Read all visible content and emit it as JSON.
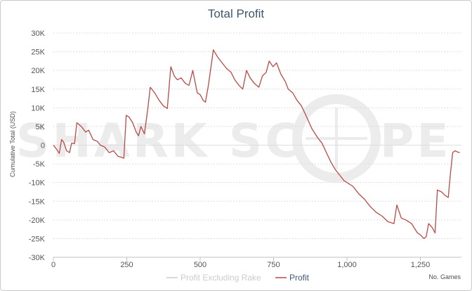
{
  "chart_data": {
    "type": "line",
    "title": "Total Profit",
    "xlabel": "No. Games",
    "ylabel": "Cumulative Total (USD)",
    "xlim": [
      0,
      1390
    ],
    "ylim": [
      -30000,
      30000
    ],
    "x_ticks": [
      0,
      250,
      500,
      750,
      1000,
      1250
    ],
    "x_tick_labels": [
      "0",
      "250",
      "500",
      "750",
      "1,000",
      "1,250"
    ],
    "y_ticks": [
      30000,
      25000,
      20000,
      15000,
      10000,
      5000,
      0,
      -5000,
      -10000,
      -15000,
      -20000,
      -25000,
      -30000
    ],
    "y_tick_labels": [
      "30K",
      "25K",
      "20K",
      "15K",
      "10K",
      "5K",
      "0",
      "-5K",
      "-10K",
      "-15K",
      "-20K",
      "-25K",
      "-30K"
    ],
    "grid": true,
    "legend_position": "bottom-center",
    "watermark": {
      "left": "SHARK SC",
      "right": "PE"
    },
    "series": [
      {
        "name": "Profit Excluding Rake",
        "color": "#cccccc",
        "visible": false,
        "points": []
      },
      {
        "name": "Profit",
        "color": "#b94a48",
        "visible": true,
        "points": [
          [
            0,
            0
          ],
          [
            10,
            -1000
          ],
          [
            20,
            -2200
          ],
          [
            28,
            1500
          ],
          [
            35,
            800
          ],
          [
            45,
            -1500
          ],
          [
            55,
            -2000
          ],
          [
            62,
            500
          ],
          [
            72,
            400
          ],
          [
            80,
            6000
          ],
          [
            95,
            5000
          ],
          [
            110,
            3500
          ],
          [
            120,
            4000
          ],
          [
            135,
            1500
          ],
          [
            150,
            1000
          ],
          [
            160,
            0
          ],
          [
            175,
            -500
          ],
          [
            190,
            -2000
          ],
          [
            205,
            -1500
          ],
          [
            220,
            -3000
          ],
          [
            230,
            -3200
          ],
          [
            240,
            -3500
          ],
          [
            248,
            8000
          ],
          [
            258,
            7500
          ],
          [
            270,
            6000
          ],
          [
            282,
            3500
          ],
          [
            290,
            2500
          ],
          [
            298,
            5000
          ],
          [
            310,
            3000
          ],
          [
            322,
            10000
          ],
          [
            330,
            15500
          ],
          [
            345,
            14000
          ],
          [
            360,
            12000
          ],
          [
            375,
            10500
          ],
          [
            388,
            9800
          ],
          [
            400,
            21000
          ],
          [
            412,
            18500
          ],
          [
            422,
            17500
          ],
          [
            435,
            18000
          ],
          [
            450,
            16500
          ],
          [
            462,
            16000
          ],
          [
            475,
            20000
          ],
          [
            490,
            14000
          ],
          [
            500,
            13500
          ],
          [
            510,
            12000
          ],
          [
            518,
            11500
          ],
          [
            528,
            16000
          ],
          [
            545,
            25500
          ],
          [
            560,
            23500
          ],
          [
            575,
            22000
          ],
          [
            590,
            20500
          ],
          [
            605,
            19500
          ],
          [
            618,
            17500
          ],
          [
            632,
            16000
          ],
          [
            645,
            15000
          ],
          [
            658,
            20000
          ],
          [
            670,
            18000
          ],
          [
            685,
            16500
          ],
          [
            700,
            15500
          ],
          [
            712,
            18500
          ],
          [
            725,
            19500
          ],
          [
            735,
            22500
          ],
          [
            748,
            21000
          ],
          [
            760,
            22000
          ],
          [
            775,
            19000
          ],
          [
            790,
            17000
          ],
          [
            800,
            15000
          ],
          [
            815,
            14000
          ],
          [
            830,
            12000
          ],
          [
            845,
            10500
          ],
          [
            860,
            8000
          ],
          [
            880,
            4500
          ],
          [
            900,
            2000
          ],
          [
            915,
            500
          ],
          [
            930,
            -2000
          ],
          [
            945,
            -4500
          ],
          [
            960,
            -6500
          ],
          [
            975,
            -8000
          ],
          [
            990,
            -9500
          ],
          [
            1000,
            -10000
          ],
          [
            1020,
            -11000
          ],
          [
            1040,
            -13000
          ],
          [
            1060,
            -14500
          ],
          [
            1080,
            -16500
          ],
          [
            1100,
            -18000
          ],
          [
            1120,
            -19000
          ],
          [
            1140,
            -20500
          ],
          [
            1160,
            -21000
          ],
          [
            1170,
            -16000
          ],
          [
            1185,
            -19500
          ],
          [
            1200,
            -20000
          ],
          [
            1220,
            -21000
          ],
          [
            1240,
            -23500
          ],
          [
            1250,
            -24000
          ],
          [
            1262,
            -25000
          ],
          [
            1270,
            -24500
          ],
          [
            1278,
            -21000
          ],
          [
            1290,
            -22000
          ],
          [
            1300,
            -23500
          ],
          [
            1308,
            -12000
          ],
          [
            1322,
            -12500
          ],
          [
            1335,
            -13500
          ],
          [
            1345,
            -14000
          ],
          [
            1352,
            -8000
          ],
          [
            1360,
            -2000
          ],
          [
            1368,
            -1500
          ],
          [
            1376,
            -1800
          ],
          [
            1384,
            -2000
          ]
        ]
      }
    ]
  }
}
